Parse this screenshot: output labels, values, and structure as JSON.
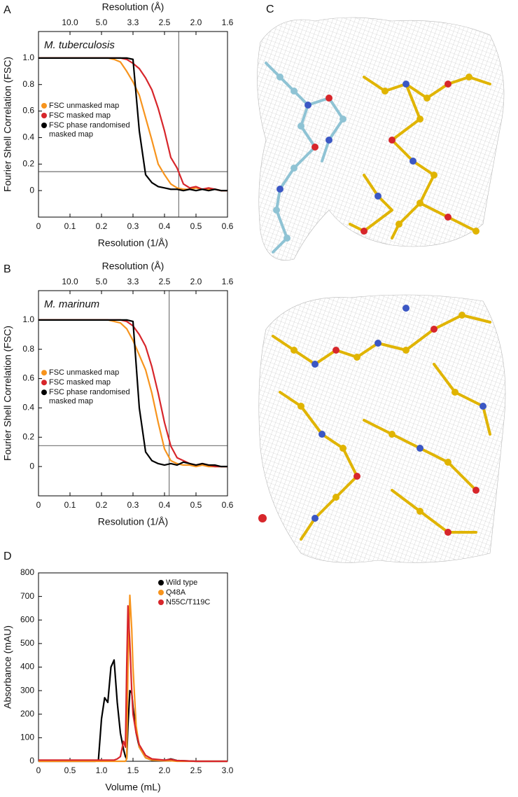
{
  "panel_c_label": "C",
  "chart_data": [
    {
      "type": "line",
      "panel": "A",
      "title": "M. tuberculosis",
      "xlabel": "Resolution (1/Å)",
      "ylabel": "Fourier Shell Correlation (FSC)",
      "x2label": "Resolution (Å)",
      "x": [
        0,
        0.02,
        0.04,
        0.06,
        0.08,
        0.1,
        0.12,
        0.14,
        0.16,
        0.18,
        0.2,
        0.22,
        0.24,
        0.26,
        0.28,
        0.3,
        0.32,
        0.34,
        0.36,
        0.38,
        0.4,
        0.42,
        0.44,
        0.46,
        0.48,
        0.5,
        0.52,
        0.54,
        0.56,
        0.58,
        0.6
      ],
      "series": [
        {
          "name": "FSC unmasked map",
          "color": "#f7941d",
          "values": [
            1,
            1,
            1,
            1,
            1,
            1,
            1,
            1,
            1,
            1,
            1,
            1,
            0.99,
            0.97,
            0.9,
            0.82,
            0.72,
            0.55,
            0.38,
            0.2,
            0.12,
            0.05,
            0.02,
            0.01,
            0.01,
            0.02,
            0.01,
            0.01,
            0.01,
            0.0,
            0.0
          ]
        },
        {
          "name": "FSC masked map",
          "color": "#d7262b",
          "values": [
            1,
            1,
            1,
            1,
            1,
            1,
            1,
            1,
            1,
            1,
            1,
            1,
            1,
            1,
            0.99,
            0.96,
            0.92,
            0.85,
            0.76,
            0.62,
            0.45,
            0.25,
            0.17,
            0.05,
            0.02,
            0.03,
            0.01,
            0.02,
            0.01,
            0.0,
            0.0
          ]
        },
        {
          "name": "FSC phase randomised masked map",
          "color": "#000000",
          "values": [
            1,
            1,
            1,
            1,
            1,
            1,
            1,
            1,
            1,
            1,
            1,
            1,
            1,
            1,
            1,
            0.99,
            0.45,
            0.12,
            0.06,
            0.03,
            0.02,
            0.01,
            0.01,
            0.0,
            0.01,
            0.0,
            0.01,
            0.0,
            0.01,
            0.0,
            0.0
          ]
        }
      ],
      "xlim": [
        0,
        0.6
      ],
      "xticks": [
        0,
        0.1,
        0.2,
        0.3,
        0.4,
        0.5,
        0.6
      ],
      "ylim": [
        -0.2,
        1.2
      ],
      "yticks": [
        0,
        0.2,
        0.4,
        0.6,
        0.8,
        {
          "value": 1,
          "label": "1.0"
        }
      ],
      "x2ticks": [
        {
          "value": 0.1,
          "label": "10.0"
        },
        {
          "value": 0.2,
          "label": "5.0"
        },
        {
          "value": 0.3,
          "label": "3.3"
        },
        {
          "value": 0.4,
          "label": "2.5"
        },
        {
          "value": 0.5,
          "label": "2.0"
        },
        {
          "value": 0.6,
          "label": "1.6"
        }
      ],
      "hline": 0.143,
      "vline": 0.445,
      "legend": "center-left"
    },
    {
      "type": "line",
      "panel": "B",
      "title": "M. marinum",
      "xlabel": "Resolution (1/Å)",
      "ylabel": "Fourier Shell Correlation (FSC)",
      "x2label": "Resolution (Å)",
      "x": [
        0,
        0.02,
        0.04,
        0.06,
        0.08,
        0.1,
        0.12,
        0.14,
        0.16,
        0.18,
        0.2,
        0.22,
        0.24,
        0.26,
        0.28,
        0.3,
        0.32,
        0.34,
        0.36,
        0.38,
        0.4,
        0.42,
        0.44,
        0.46,
        0.48,
        0.5,
        0.52,
        0.54,
        0.56,
        0.58,
        0.6
      ],
      "series": [
        {
          "name": "FSC unmasked map",
          "color": "#f7941d",
          "values": [
            1,
            1,
            1,
            1,
            1,
            1,
            1,
            1,
            1,
            1,
            1,
            1,
            0.99,
            0.98,
            0.94,
            0.86,
            0.76,
            0.66,
            0.5,
            0.3,
            0.12,
            0.04,
            0.02,
            0.01,
            0.01,
            0.0,
            0.01,
            0.0,
            0.0,
            0.0,
            0.0
          ]
        },
        {
          "name": "FSC masked map",
          "color": "#d7262b",
          "values": [
            1,
            1,
            1,
            1,
            1,
            1,
            1,
            1,
            1,
            1,
            1,
            1,
            1,
            1,
            0.99,
            0.96,
            0.9,
            0.82,
            0.68,
            0.5,
            0.3,
            0.14,
            0.06,
            0.04,
            0.02,
            0.01,
            0.02,
            0.01,
            0.0,
            0.0,
            0.0
          ]
        },
        {
          "name": "FSC phase randomised masked map",
          "color": "#000000",
          "values": [
            1,
            1,
            1,
            1,
            1,
            1,
            1,
            1,
            1,
            1,
            1,
            1,
            1,
            1,
            1,
            0.99,
            0.4,
            0.1,
            0.04,
            0.02,
            0.01,
            0.02,
            0.01,
            0.03,
            0.02,
            0.01,
            0.02,
            0.01,
            0.01,
            0.0,
            0.0
          ]
        }
      ],
      "xlim": [
        0,
        0.6
      ],
      "xticks": [
        0,
        0.1,
        0.2,
        0.3,
        0.4,
        0.5,
        0.6
      ],
      "ylim": [
        -0.2,
        1.2
      ],
      "yticks": [
        0,
        0.2,
        0.4,
        0.6,
        0.8,
        {
          "value": 1,
          "label": "1.0"
        }
      ],
      "x2ticks": [
        {
          "value": 0.1,
          "label": "10.0"
        },
        {
          "value": 0.2,
          "label": "5.0"
        },
        {
          "value": 0.3,
          "label": "3.3"
        },
        {
          "value": 0.4,
          "label": "2.5"
        },
        {
          "value": 0.5,
          "label": "2.0"
        },
        {
          "value": 0.6,
          "label": "1.6"
        }
      ],
      "hline": 0.143,
      "vline": 0.415,
      "legend": "center-left"
    },
    {
      "type": "line",
      "panel": "D",
      "xlabel": "Volume (mL)",
      "ylabel": "Absorbance (mAU)",
      "x": [
        0,
        0.5,
        0.9,
        0.95,
        1.0,
        1.05,
        1.1,
        1.15,
        1.2,
        1.25,
        1.3,
        1.35,
        1.38,
        1.4,
        1.42,
        1.45,
        1.48,
        1.5,
        1.55,
        1.6,
        1.7,
        1.8,
        2.0,
        2.1,
        2.2,
        2.5,
        3.0
      ],
      "series": [
        {
          "name": "Wild type",
          "color": "#000000",
          "values": [
            0,
            0,
            0,
            2,
            180,
            270,
            250,
            400,
            430,
            250,
            120,
            50,
            20,
            10,
            150,
            300,
            290,
            230,
            120,
            60,
            15,
            5,
            3,
            10,
            3,
            0,
            0
          ]
        },
        {
          "name": "Q48A",
          "color": "#f7941d",
          "values": [
            0,
            0,
            0,
            0,
            0,
            0,
            0,
            0,
            0,
            0,
            0,
            0,
            0,
            10,
            400,
            705,
            560,
            400,
            150,
            60,
            15,
            5,
            2,
            2,
            0,
            0,
            0
          ]
        },
        {
          "name": "N55C/T119C",
          "color": "#d7262b",
          "values": [
            5,
            5,
            5,
            5,
            5,
            5,
            5,
            5,
            5,
            10,
            20,
            85,
            60,
            400,
            660,
            500,
            300,
            200,
            120,
            70,
            25,
            10,
            5,
            8,
            3,
            0,
            0
          ]
        }
      ],
      "xlim": [
        0,
        3
      ],
      "xticks": [
        0,
        0.5,
        {
          "value": 1,
          "label": "1.0"
        },
        1.5,
        {
          "value": 2,
          "label": "2.0"
        },
        2.5,
        {
          "value": 3,
          "label": "3.0"
        }
      ],
      "ylim": [
        0,
        800
      ],
      "yticks": [
        0,
        100,
        200,
        300,
        400,
        500,
        600,
        700,
        800
      ],
      "legend": "upper-right"
    }
  ]
}
